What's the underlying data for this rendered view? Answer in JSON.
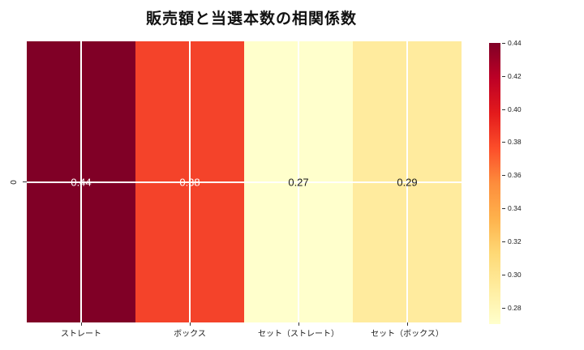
{
  "title": "販売額と当選本数の相関係数",
  "y_axis": {
    "tick_label": "0"
  },
  "colors": {
    "background": "#ffffff",
    "grid_line": "#ffffff",
    "tick": "#333333",
    "text": "#1a1a1a"
  },
  "chart_data": {
    "type": "heatmap",
    "title": "販売額と当選本数の相関係数",
    "x_categories": [
      "ストレート",
      "ボックス",
      "セット（ストレート）",
      "セット（ボックス）"
    ],
    "y_categories": [
      "0"
    ],
    "values": [
      [
        0.44,
        0.38,
        0.27,
        0.29
      ]
    ],
    "value_labels": [
      [
        "0.44",
        "0.38",
        "0.27",
        "0.29"
      ]
    ],
    "cell_colors": [
      [
        "#800026",
        "#f4432a",
        "#ffffcc",
        "#ffeb9e"
      ]
    ],
    "cell_text_colors": [
      [
        "#ffffff",
        "#ffffff",
        "#1a1a1a",
        "#1a1a1a"
      ]
    ],
    "grid": true,
    "colormap": "YlOrRd",
    "colorbar": {
      "min": 0.27,
      "max": 0.44,
      "tick_labels": [
        "0.44",
        "0.42",
        "0.40",
        "0.38",
        "0.36",
        "0.34",
        "0.32",
        "0.30",
        "0.28"
      ],
      "gradient_top_to_bottom": [
        "#800026",
        "#bd0026",
        "#e31a1c",
        "#fc4e2a",
        "#fd8d3c",
        "#feb24c",
        "#fed976",
        "#ffeda0",
        "#ffffcc"
      ]
    }
  }
}
